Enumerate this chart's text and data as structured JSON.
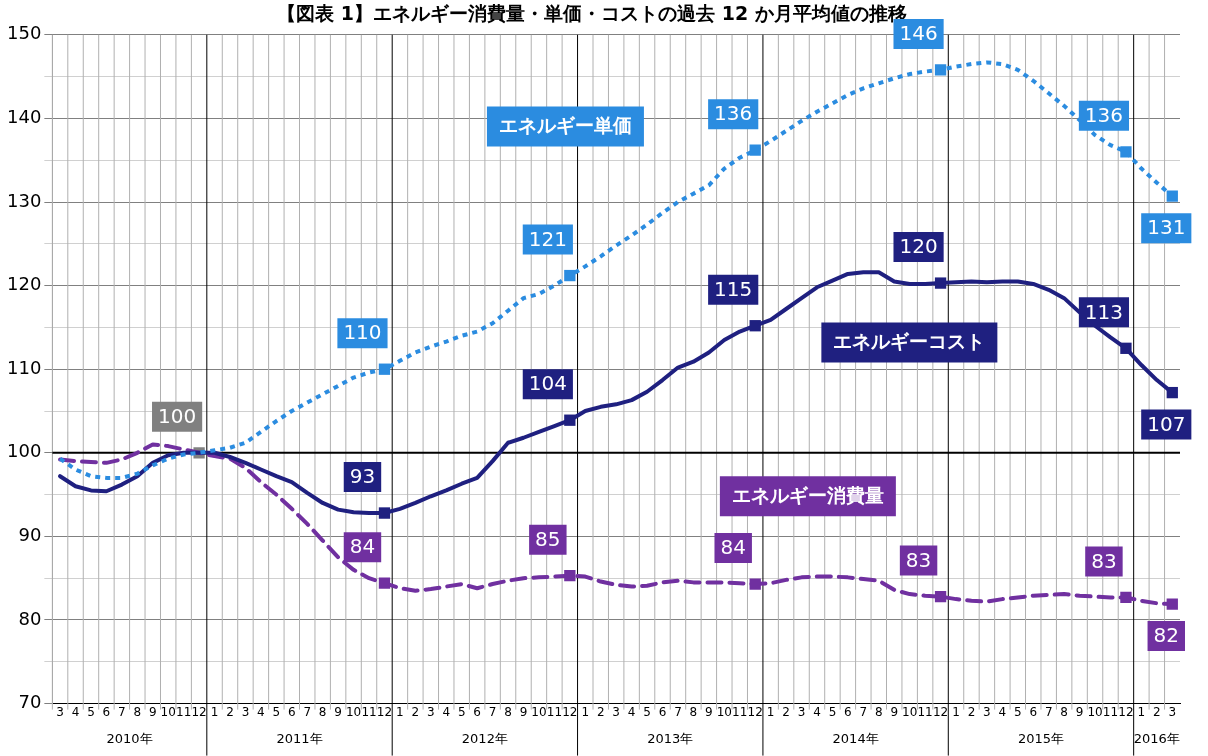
{
  "chart_data": {
    "type": "line",
    "title": "【図表 1】エネルギー消費量・単価・コストの過去 12 か月平均値の推移",
    "x": [
      "2010-03",
      "2010-04",
      "2010-05",
      "2010-06",
      "2010-07",
      "2010-08",
      "2010-09",
      "2010-10",
      "2010-11",
      "2010-12",
      "2011-01",
      "2011-02",
      "2011-03",
      "2011-04",
      "2011-05",
      "2011-06",
      "2011-07",
      "2011-08",
      "2011-09",
      "2011-10",
      "2011-11",
      "2011-12",
      "2012-01",
      "2012-02",
      "2012-03",
      "2012-04",
      "2012-05",
      "2012-06",
      "2012-07",
      "2012-08",
      "2012-09",
      "2012-10",
      "2012-11",
      "2012-12",
      "2013-01",
      "2013-02",
      "2013-03",
      "2013-04",
      "2013-05",
      "2013-06",
      "2013-07",
      "2013-08",
      "2013-09",
      "2013-10",
      "2013-11",
      "2013-12",
      "2014-01",
      "2014-02",
      "2014-03",
      "2014-04",
      "2014-05",
      "2014-06",
      "2014-07",
      "2014-08",
      "2014-09",
      "2014-10",
      "2014-11",
      "2014-12",
      "2015-01",
      "2015-02",
      "2015-03",
      "2015-04",
      "2015-05",
      "2015-06",
      "2015-07",
      "2015-08",
      "2015-09",
      "2015-10",
      "2015-11",
      "2015-12",
      "2016-01",
      "2016-02",
      "2016-03"
    ],
    "series": [
      {
        "name": "エネルギー単価",
        "color": "#2b8ce0",
        "line_style": "dotted",
        "values": [
          99.3,
          98,
          97.2,
          97,
          97,
          97.5,
          98.5,
          99.3,
          99.8,
          100,
          100.3,
          100.6,
          101.2,
          102.5,
          103.8,
          105,
          106,
          107,
          108,
          109,
          109.6,
          110,
          111,
          112,
          112.7,
          113.3,
          114,
          114.5,
          115.5,
          117,
          118.5,
          119,
          120,
          121.2,
          122.3,
          123.5,
          124.8,
          126,
          127.3,
          128.7,
          130,
          131,
          132,
          134,
          135.3,
          136.2,
          137.3,
          138.5,
          139.7,
          140.8,
          141.8,
          142.8,
          143.6,
          144.2,
          144.8,
          145.3,
          145.6,
          145.8,
          146.2,
          146.5,
          146.7,
          146.5,
          145.8,
          144.5,
          143,
          141.5,
          139.8,
          138,
          136.8,
          136,
          134,
          132.3,
          130.7
        ],
        "value_labels": [
          null,
          null,
          null,
          null,
          null,
          null,
          null,
          null,
          null,
          null,
          null,
          null,
          null,
          null,
          null,
          null,
          null,
          null,
          null,
          null,
          null,
          "110",
          null,
          null,
          null,
          null,
          null,
          null,
          null,
          null,
          null,
          null,
          null,
          "121",
          null,
          null,
          null,
          null,
          null,
          null,
          null,
          null,
          null,
          null,
          null,
          "136",
          null,
          null,
          null,
          null,
          null,
          null,
          null,
          null,
          null,
          null,
          null,
          "146",
          null,
          null,
          null,
          null,
          null,
          null,
          null,
          null,
          null,
          null,
          null,
          "136",
          null,
          null,
          "131"
        ]
      },
      {
        "name": "エネルギーコスト",
        "color": "#1f2080",
        "line_style": "solid",
        "values": [
          97.2,
          96,
          95.5,
          95.4,
          96.2,
          97.2,
          98.8,
          99.7,
          100,
          100,
          100,
          99.5,
          98.8,
          98,
          97.2,
          96.5,
          95.2,
          94,
          93.2,
          92.9,
          92.8,
          92.8,
          93.3,
          94,
          94.8,
          95.5,
          96.3,
          97,
          99,
          101.2,
          101.8,
          102.5,
          103.2,
          103.9,
          105,
          105.5,
          105.8,
          106.3,
          107.3,
          108.7,
          110.2,
          110.9,
          112,
          113.5,
          114.5,
          115.2,
          115.9,
          117.2,
          118.5,
          119.8,
          120.6,
          121.4,
          121.6,
          121.6,
          120.5,
          120.2,
          120.2,
          120.3,
          120.4,
          120.5,
          120.4,
          120.5,
          120.5,
          120.2,
          119.5,
          118.5,
          116.8,
          115.2,
          113.8,
          112.5,
          110.5,
          108.7,
          107.2
        ],
        "value_labels": [
          null,
          null,
          null,
          null,
          null,
          null,
          null,
          null,
          null,
          null,
          null,
          null,
          null,
          null,
          null,
          null,
          null,
          null,
          null,
          null,
          null,
          "93",
          null,
          null,
          null,
          null,
          null,
          null,
          null,
          null,
          null,
          null,
          null,
          "104",
          null,
          null,
          null,
          null,
          null,
          null,
          null,
          null,
          null,
          null,
          null,
          "115",
          null,
          null,
          null,
          null,
          null,
          null,
          null,
          null,
          null,
          null,
          null,
          "120",
          null,
          null,
          null,
          null,
          null,
          null,
          null,
          null,
          null,
          null,
          null,
          "113",
          null,
          null,
          "107"
        ]
      },
      {
        "name": "エネルギー消費量",
        "color": "#7030a0",
        "line_style": "dashed",
        "values": [
          99.2,
          99,
          98.9,
          98.8,
          99.2,
          100,
          101,
          100.8,
          100.4,
          100,
          99.6,
          99.3,
          98.2,
          96.5,
          95,
          93.3,
          91.5,
          89.5,
          87.5,
          86,
          85,
          84.4,
          83.8,
          83.5,
          83.7,
          84,
          84.3,
          83.8,
          84.3,
          84.7,
          85,
          85.1,
          85.2,
          85.3,
          85.2,
          84.6,
          84.2,
          84,
          84.1,
          84.5,
          84.7,
          84.5,
          84.5,
          84.5,
          84.4,
          84.3,
          84.4,
          84.8,
          85.1,
          85.2,
          85.2,
          85.1,
          84.9,
          84.7,
          83.6,
          83.1,
          82.9,
          82.8,
          82.5,
          82.3,
          82.2,
          82.5,
          82.7,
          82.9,
          83,
          83.1,
          82.9,
          82.8,
          82.7,
          82.7,
          82.3,
          82,
          81.9
        ],
        "value_labels": [
          null,
          null,
          null,
          null,
          null,
          null,
          null,
          null,
          null,
          null,
          null,
          null,
          null,
          null,
          null,
          null,
          null,
          null,
          null,
          null,
          null,
          "84",
          null,
          null,
          null,
          null,
          null,
          null,
          null,
          null,
          null,
          null,
          null,
          "85",
          null,
          null,
          null,
          null,
          null,
          null,
          null,
          null,
          null,
          null,
          null,
          "84",
          null,
          null,
          null,
          null,
          null,
          null,
          null,
          null,
          null,
          null,
          null,
          "83",
          null,
          null,
          null,
          null,
          null,
          null,
          null,
          null,
          null,
          null,
          null,
          "83",
          null,
          null,
          "82"
        ]
      },
      {
        "type": "scatter",
        "color": "#808080",
        "x": [
          "2010-12"
        ],
        "values": [
          100
        ],
        "value_labels": [
          "100"
        ]
      }
    ],
    "legend": false,
    "grid": true,
    "xlim": [
      "2010-02-16",
      "2016-03-16"
    ],
    "xticks": [
      {
        "value": "2010-03",
        "label": "3"
      },
      {
        "value": "2010-04",
        "label": "4"
      },
      {
        "value": "2010-05",
        "label": "5"
      },
      {
        "value": "2010-06",
        "label": "6"
      },
      {
        "value": "2010-07",
        "label": "7"
      },
      {
        "value": "2010-08",
        "label": "8"
      },
      {
        "value": "2010-09",
        "label": "9"
      },
      {
        "value": "2010-10",
        "label": "10"
      },
      {
        "value": "2010-11",
        "label": "11"
      },
      {
        "value": "2010-12",
        "label": "12"
      },
      {
        "value": "2011-01",
        "label": "1"
      },
      {
        "value": "2011-02",
        "label": "2"
      },
      {
        "value": "2011-03",
        "label": "3"
      },
      {
        "value": "2011-04",
        "label": "4"
      },
      {
        "value": "2011-05",
        "label": "5"
      },
      {
        "value": "2011-06",
        "label": "6"
      },
      {
        "value": "2011-07",
        "label": "7"
      },
      {
        "value": "2011-08",
        "label": "8"
      },
      {
        "value": "2011-09",
        "label": "9"
      },
      {
        "value": "2011-10",
        "label": "10"
      },
      {
        "value": "2011-11",
        "label": "11"
      },
      {
        "value": "2011-12",
        "label": "12"
      },
      {
        "value": "2012-01",
        "label": "1"
      },
      {
        "value": "2012-02",
        "label": "2"
      },
      {
        "value": "2012-03",
        "label": "3"
      },
      {
        "value": "2012-04",
        "label": "4"
      },
      {
        "value": "2012-05",
        "label": "5"
      },
      {
        "value": "2012-06",
        "label": "6"
      },
      {
        "value": "2012-07",
        "label": "7"
      },
      {
        "value": "2012-08",
        "label": "8"
      },
      {
        "value": "2012-09",
        "label": "9"
      },
      {
        "value": "2012-10",
        "label": "10"
      },
      {
        "value": "2012-11",
        "label": "11"
      },
      {
        "value": "2012-12",
        "label": "12"
      },
      {
        "value": "2013-01",
        "label": "1"
      },
      {
        "value": "2013-02",
        "label": "2"
      },
      {
        "value": "2013-03",
        "label": "3"
      },
      {
        "value": "2013-04",
        "label": "4"
      },
      {
        "value": "2013-05",
        "label": "5"
      },
      {
        "value": "2013-06",
        "label": "6"
      },
      {
        "value": "2013-07",
        "label": "7"
      },
      {
        "value": "2013-08",
        "label": "8"
      },
      {
        "value": "2013-09",
        "label": "9"
      },
      {
        "value": "2013-10",
        "label": "10"
      },
      {
        "value": "2013-11",
        "label": "11"
      },
      {
        "value": "2013-12",
        "label": "12"
      },
      {
        "value": "2014-01",
        "label": "1"
      },
      {
        "value": "2014-02",
        "label": "2"
      },
      {
        "value": "2014-03",
        "label": "3"
      },
      {
        "value": "2014-04",
        "label": "4"
      },
      {
        "value": "2014-05",
        "label": "5"
      },
      {
        "value": "2014-06",
        "label": "6"
      },
      {
        "value": "2014-07",
        "label": "7"
      },
      {
        "value": "2014-08",
        "label": "8"
      },
      {
        "value": "2014-09",
        "label": "9"
      },
      {
        "value": "2014-10",
        "label": "10"
      },
      {
        "value": "2014-11",
        "label": "11"
      },
      {
        "value": "2014-12",
        "label": "12"
      },
      {
        "value": "2015-01",
        "label": "1"
      },
      {
        "value": "2015-02",
        "label": "2"
      },
      {
        "value": "2015-03",
        "label": "3"
      },
      {
        "value": "2015-04",
        "label": "4"
      },
      {
        "value": "2015-05",
        "label": "5"
      },
      {
        "value": "2015-06",
        "label": "6"
      },
      {
        "value": "2015-07",
        "label": "7"
      },
      {
        "value": "2015-08",
        "label": "8"
      },
      {
        "value": "2015-09",
        "label": "9"
      },
      {
        "value": "2015-10",
        "label": "10"
      },
      {
        "value": "2015-11",
        "label": "11"
      },
      {
        "value": "2015-12",
        "label": "12"
      },
      {
        "value": "2016-01",
        "label": "1"
      },
      {
        "value": "2016-02",
        "label": "2"
      },
      {
        "value": "2016-03",
        "label": "3"
      }
    ],
    "ylim": [
      70,
      150
    ],
    "yticks": [
      70,
      {
        "value": 75,
        "label": null
      },
      80,
      {
        "value": 85,
        "label": null
      },
      90,
      {
        "value": 95,
        "label": null
      },
      100,
      {
        "value": 105,
        "label": null
      },
      110,
      {
        "value": 115,
        "label": null
      },
      120,
      {
        "value": 125,
        "label": null
      },
      130,
      {
        "value": 135,
        "label": null
      },
      140,
      {
        "value": 145,
        "label": null
      },
      150
    ],
    "ref_lines": [
      {
        "axis": "y",
        "value": 100,
        "color": "#000000"
      }
    ],
    "annotations": [
      "2010年",
      "2011年",
      "2012年",
      "2013年",
      "2014年",
      "2015年",
      "2016年"
    ]
  }
}
